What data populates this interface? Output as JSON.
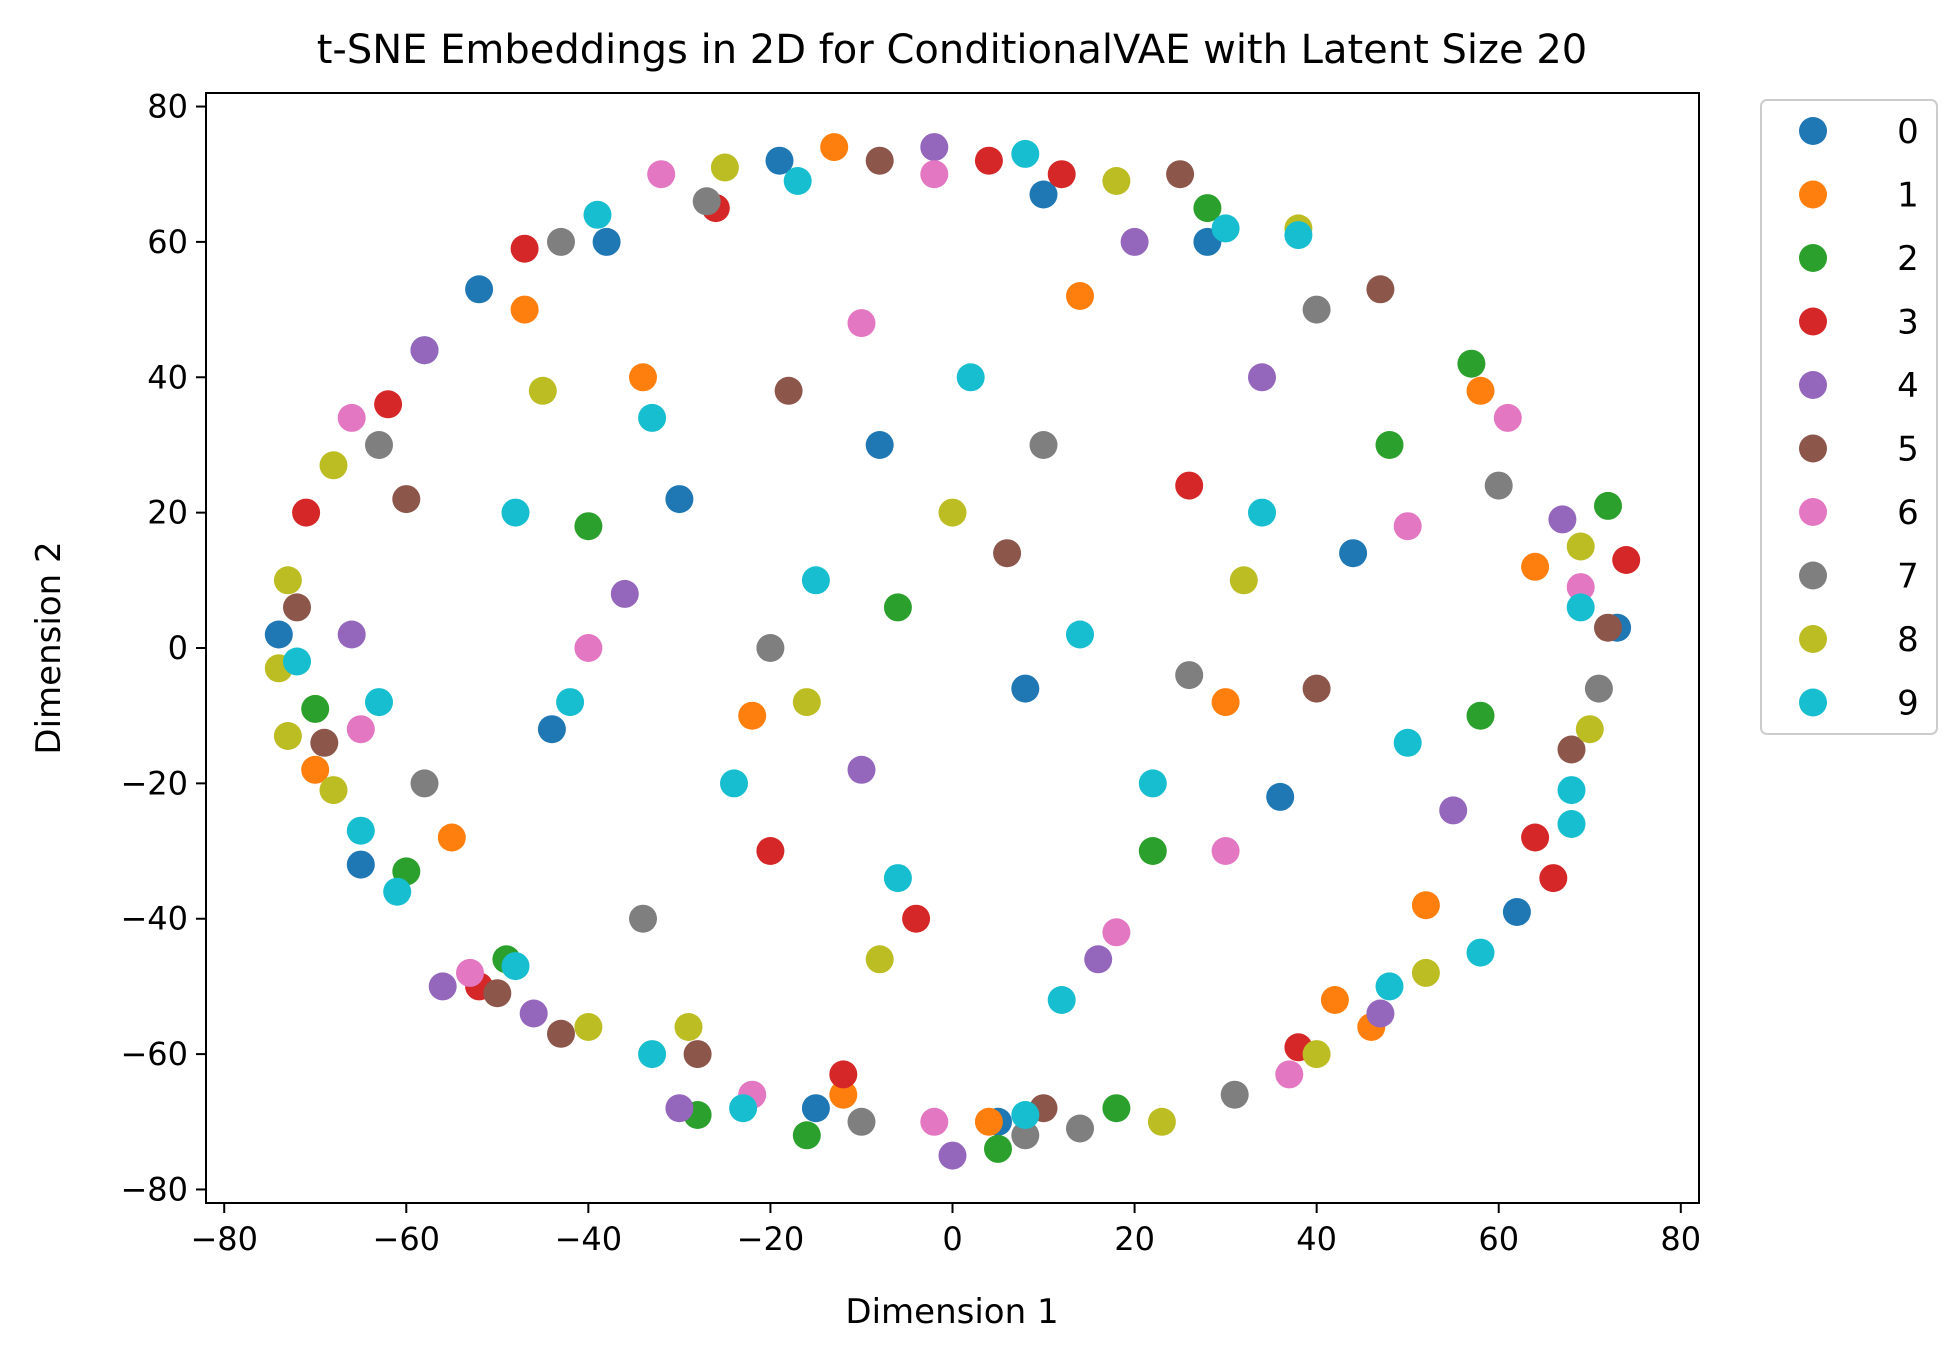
{
  "chart_data": {
    "type": "scatter",
    "title": "t-SNE Embeddings in 2D for ConditionalVAE with Latent Size 20",
    "xlabel": "Dimension 1",
    "ylabel": "Dimension 2",
    "xlim": [
      -82,
      82
    ],
    "ylim": [
      -82,
      82
    ],
    "xticks": [
      -80,
      -60,
      -40,
      -20,
      0,
      20,
      40,
      60,
      80
    ],
    "yticks": [
      -80,
      -60,
      -40,
      -20,
      0,
      20,
      40,
      60,
      80
    ],
    "xtick_labels": [
      "−80",
      "−60",
      "−40",
      "−20",
      "0",
      "20",
      "40",
      "60",
      "80"
    ],
    "ytick_labels": [
      "−80",
      "−60",
      "−40",
      "−20",
      "0",
      "20",
      "40",
      "60",
      "80"
    ],
    "grid": false,
    "legend_position": "outside-right-top",
    "note": "Points form a dense roughly elliptical cloud with all ten classes intermixed; the values below are a representative sample read from the visible outlying points.",
    "series": [
      {
        "name": "0",
        "color": "#1f77b4",
        "points": [
          [
            -74,
            2
          ],
          [
            -52,
            53
          ],
          [
            -65,
            -32
          ],
          [
            -38,
            60
          ],
          [
            -19,
            72
          ],
          [
            10,
            67
          ],
          [
            28,
            60
          ],
          [
            62,
            -39
          ],
          [
            73,
            3
          ],
          [
            -15,
            -68
          ],
          [
            5,
            -70
          ],
          [
            -44,
            -12
          ],
          [
            -30,
            22
          ],
          [
            8,
            -6
          ],
          [
            36,
            -22
          ],
          [
            44,
            14
          ],
          [
            -58,
            44
          ],
          [
            -8,
            30
          ]
        ]
      },
      {
        "name": "1",
        "color": "#ff7f0e",
        "points": [
          [
            -70,
            -18
          ],
          [
            -47,
            50
          ],
          [
            -13,
            74
          ],
          [
            58,
            38
          ],
          [
            46,
            -56
          ],
          [
            42,
            -52
          ],
          [
            -12,
            -66
          ],
          [
            4,
            -70
          ],
          [
            52,
            -38
          ],
          [
            -55,
            -28
          ],
          [
            14,
            52
          ],
          [
            -22,
            -10
          ],
          [
            30,
            -8
          ],
          [
            64,
            12
          ],
          [
            -34,
            40
          ]
        ]
      },
      {
        "name": "2",
        "color": "#2ca02c",
        "points": [
          [
            -70,
            -9
          ],
          [
            -60,
            -33
          ],
          [
            -16,
            -72
          ],
          [
            5,
            -74
          ],
          [
            18,
            -68
          ],
          [
            72,
            21
          ],
          [
            57,
            42
          ],
          [
            28,
            65
          ],
          [
            -49,
            -46
          ],
          [
            58,
            -10
          ],
          [
            -28,
            -69
          ],
          [
            -40,
            18
          ],
          [
            22,
            -30
          ],
          [
            -6,
            6
          ],
          [
            48,
            30
          ]
        ]
      },
      {
        "name": "3",
        "color": "#d62728",
        "points": [
          [
            -71,
            20
          ],
          [
            -47,
            59
          ],
          [
            -26,
            65
          ],
          [
            4,
            72
          ],
          [
            12,
            70
          ],
          [
            74,
            13
          ],
          [
            66,
            -34
          ],
          [
            -52,
            -50
          ],
          [
            -12,
            -63
          ],
          [
            38,
            -59
          ],
          [
            64,
            -28
          ],
          [
            -62,
            36
          ],
          [
            -20,
            -30
          ],
          [
            26,
            24
          ],
          [
            -4,
            -40
          ]
        ]
      },
      {
        "name": "4",
        "color": "#9467bd",
        "points": [
          [
            -58,
            44
          ],
          [
            -2,
            74
          ],
          [
            -56,
            -50
          ],
          [
            -46,
            -54
          ],
          [
            -30,
            -68
          ],
          [
            47,
            -54
          ],
          [
            0,
            -75
          ],
          [
            16,
            -46
          ],
          [
            67,
            19
          ],
          [
            -36,
            8
          ],
          [
            20,
            60
          ],
          [
            55,
            -24
          ],
          [
            -10,
            -18
          ],
          [
            34,
            40
          ],
          [
            -66,
            2
          ]
        ]
      },
      {
        "name": "5",
        "color": "#8c564b",
        "points": [
          [
            -72,
            6
          ],
          [
            -69,
            -14
          ],
          [
            -50,
            -51
          ],
          [
            -43,
            -57
          ],
          [
            -8,
            72
          ],
          [
            25,
            70
          ],
          [
            47,
            53
          ],
          [
            72,
            3
          ],
          [
            68,
            -15
          ],
          [
            -28,
            -60
          ],
          [
            10,
            -68
          ],
          [
            -60,
            22
          ],
          [
            40,
            -6
          ],
          [
            -18,
            38
          ],
          [
            6,
            14
          ]
        ]
      },
      {
        "name": "6",
        "color": "#e377c2",
        "points": [
          [
            -66,
            34
          ],
          [
            -32,
            70
          ],
          [
            -2,
            70
          ],
          [
            -53,
            -48
          ],
          [
            -22,
            -66
          ],
          [
            -2,
            -70
          ],
          [
            37,
            -63
          ],
          [
            61,
            34
          ],
          [
            69,
            9
          ],
          [
            -65,
            -12
          ],
          [
            -40,
            0
          ],
          [
            18,
            -42
          ],
          [
            50,
            18
          ],
          [
            -10,
            48
          ],
          [
            30,
            -30
          ]
        ]
      },
      {
        "name": "7",
        "color": "#7f7f7f",
        "points": [
          [
            -63,
            30
          ],
          [
            -43,
            60
          ],
          [
            -27,
            66
          ],
          [
            14,
            -71
          ],
          [
            8,
            -72
          ],
          [
            -10,
            -70
          ],
          [
            31,
            -66
          ],
          [
            71,
            -6
          ],
          [
            60,
            24
          ],
          [
            -58,
            -20
          ],
          [
            40,
            50
          ],
          [
            -20,
            0
          ],
          [
            10,
            30
          ],
          [
            -34,
            -40
          ],
          [
            26,
            -4
          ]
        ]
      },
      {
        "name": "8",
        "color": "#bcbd22",
        "points": [
          [
            -73,
            10
          ],
          [
            -74,
            -3
          ],
          [
            -73,
            -13
          ],
          [
            -68,
            -21
          ],
          [
            -68,
            27
          ],
          [
            -29,
            -56
          ],
          [
            -25,
            71
          ],
          [
            18,
            69
          ],
          [
            38,
            62
          ],
          [
            70,
            -12
          ],
          [
            69,
            15
          ],
          [
            52,
            -48
          ],
          [
            40,
            -60
          ],
          [
            -40,
            -56
          ],
          [
            23,
            -70
          ],
          [
            -45,
            38
          ],
          [
            0,
            20
          ],
          [
            -16,
            -8
          ],
          [
            32,
            10
          ],
          [
            -8,
            -46
          ]
        ]
      },
      {
        "name": "9",
        "color": "#17becf",
        "points": [
          [
            -72,
            -2
          ],
          [
            -65,
            -27
          ],
          [
            -63,
            -8
          ],
          [
            -61,
            -36
          ],
          [
            -48,
            -47
          ],
          [
            -39,
            64
          ],
          [
            -33,
            -60
          ],
          [
            -23,
            -68
          ],
          [
            -17,
            69
          ],
          [
            8,
            73
          ],
          [
            30,
            62
          ],
          [
            69,
            6
          ],
          [
            68,
            -21
          ],
          [
            68,
            -26
          ],
          [
            58,
            -45
          ],
          [
            48,
            -50
          ],
          [
            38,
            61
          ],
          [
            8,
            -69
          ],
          [
            -48,
            20
          ],
          [
            -33,
            34
          ],
          [
            -15,
            10
          ],
          [
            2,
            40
          ],
          [
            14,
            2
          ],
          [
            22,
            -20
          ],
          [
            -24,
            -20
          ],
          [
            34,
            20
          ],
          [
            50,
            -14
          ],
          [
            -6,
            -34
          ],
          [
            -42,
            -8
          ],
          [
            12,
            -52
          ]
        ]
      }
    ]
  }
}
